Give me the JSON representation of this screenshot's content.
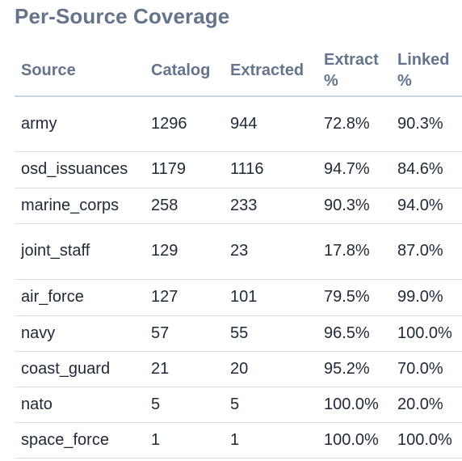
{
  "title": "Per-Source Coverage",
  "columns": {
    "source": "Source",
    "catalog": "Catalog",
    "extracted": "Extracted",
    "extract_pct": "Extract %",
    "linked_pct": "Linked %"
  },
  "rows": [
    {
      "source": "army",
      "catalog": "1296",
      "extracted": "944",
      "extract_pct": "72.8%",
      "linked_pct": "90.3%"
    },
    {
      "source": "osd_issuances",
      "catalog": "1179",
      "extracted": "1116",
      "extract_pct": "94.7%",
      "linked_pct": "84.6%"
    },
    {
      "source": "marine_corps",
      "catalog": "258",
      "extracted": "233",
      "extract_pct": "90.3%",
      "linked_pct": "94.0%"
    },
    {
      "source": "joint_staff",
      "catalog": "129",
      "extracted": "23",
      "extract_pct": "17.8%",
      "linked_pct": "87.0%"
    },
    {
      "source": "air_force",
      "catalog": "127",
      "extracted": "101",
      "extract_pct": "79.5%",
      "linked_pct": "99.0%"
    },
    {
      "source": "navy",
      "catalog": "57",
      "extracted": "55",
      "extract_pct": "96.5%",
      "linked_pct": "100.0%"
    },
    {
      "source": "coast_guard",
      "catalog": "21",
      "extracted": "20",
      "extract_pct": "95.2%",
      "linked_pct": "70.0%"
    },
    {
      "source": "nato",
      "catalog": "5",
      "extracted": "5",
      "extract_pct": "100.0%",
      "linked_pct": "20.0%"
    },
    {
      "source": "space_force",
      "catalog": "1",
      "extracted": "1",
      "extract_pct": "100.0%",
      "linked_pct": "100.0%"
    }
  ]
}
